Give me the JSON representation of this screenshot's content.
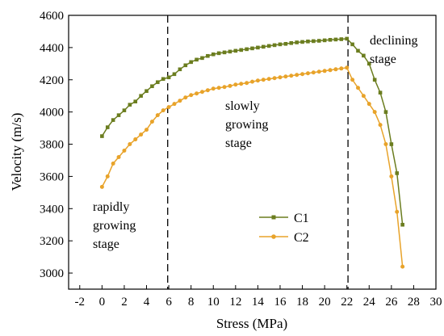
{
  "chart_data": {
    "type": "line",
    "xlabel": "Stress (MPa)",
    "ylabel": "Velocity (m/s)",
    "xlim": [
      -3,
      30
    ],
    "ylim": [
      2900,
      4600
    ],
    "xticks": [
      -2,
      0,
      2,
      4,
      6,
      8,
      10,
      12,
      14,
      16,
      18,
      20,
      22,
      24,
      26,
      28,
      30
    ],
    "yticks": [
      3000,
      3200,
      3400,
      3600,
      3800,
      4000,
      4200,
      4400,
      4600
    ],
    "grid": false,
    "legend_position": "lower-right",
    "stage_dividers_x": [
      5.9,
      22.1
    ],
    "annotations": [
      {
        "lines": [
          "rapidly",
          "growing",
          "stage"
        ]
      },
      {
        "lines": [
          "slowly",
          "growing",
          "stage"
        ]
      },
      {
        "lines": [
          "declining",
          "stage"
        ]
      }
    ],
    "series": [
      {
        "name": "C1",
        "color": "#6b7d1f",
        "x": [
          0,
          0.5,
          1,
          1.5,
          2,
          2.5,
          3,
          3.5,
          4,
          4.5,
          5,
          5.5,
          6,
          6.5,
          7,
          7.5,
          8,
          8.5,
          9,
          9.5,
          10,
          10.5,
          11,
          11.5,
          12,
          12.5,
          13,
          13.5,
          14,
          14.5,
          15,
          15.5,
          16,
          16.5,
          17,
          17.5,
          18,
          18.5,
          19,
          19.5,
          20,
          20.5,
          21,
          21.5,
          22,
          22.5,
          23,
          23.5,
          24,
          24.5,
          25,
          25.5,
          26,
          26.5,
          27
        ],
        "y": [
          3850,
          3905,
          3950,
          3980,
          4010,
          4045,
          4065,
          4100,
          4130,
          4160,
          4185,
          4205,
          4215,
          4235,
          4265,
          4290,
          4310,
          4325,
          4335,
          4348,
          4358,
          4365,
          4370,
          4375,
          4380,
          4385,
          4390,
          4395,
          4400,
          4405,
          4410,
          4415,
          4420,
          4423,
          4428,
          4432,
          4435,
          4438,
          4440,
          4442,
          4445,
          4448,
          4450,
          4452,
          4455,
          4420,
          4380,
          4350,
          4300,
          4200,
          4120,
          4000,
          3800,
          3620,
          3300
        ]
      },
      {
        "name": "C2",
        "color": "#e8a32a",
        "x": [
          0,
          0.5,
          1,
          1.5,
          2,
          2.5,
          3,
          3.5,
          4,
          4.5,
          5,
          5.5,
          6,
          6.5,
          7,
          7.5,
          8,
          8.5,
          9,
          9.5,
          10,
          10.5,
          11,
          11.5,
          12,
          12.5,
          13,
          13.5,
          14,
          14.5,
          15,
          15.5,
          16,
          16.5,
          17,
          17.5,
          18,
          18.5,
          19,
          19.5,
          20,
          20.5,
          21,
          21.5,
          22,
          22.5,
          23,
          23.5,
          24,
          24.5,
          25,
          25.5,
          26,
          26.5,
          27
        ],
        "y": [
          3535,
          3600,
          3680,
          3720,
          3760,
          3800,
          3830,
          3860,
          3890,
          3940,
          3980,
          4010,
          4030,
          4050,
          4070,
          4090,
          4105,
          4115,
          4125,
          4135,
          4145,
          4150,
          4155,
          4162,
          4170,
          4175,
          4180,
          4188,
          4195,
          4200,
          4205,
          4210,
          4215,
          4220,
          4225,
          4230,
          4235,
          4240,
          4245,
          4250,
          4255,
          4260,
          4265,
          4270,
          4275,
          4200,
          4150,
          4100,
          4050,
          4000,
          3920,
          3800,
          3600,
          3380,
          3040
        ]
      }
    ]
  }
}
